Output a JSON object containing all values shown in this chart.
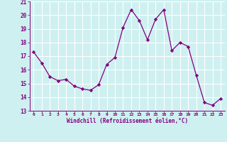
{
  "x": [
    0,
    1,
    2,
    3,
    4,
    5,
    6,
    7,
    8,
    9,
    10,
    11,
    12,
    13,
    14,
    15,
    16,
    17,
    18,
    19,
    20,
    21,
    22,
    23
  ],
  "y": [
    17.3,
    16.5,
    15.5,
    15.2,
    15.3,
    14.8,
    14.6,
    14.5,
    14.9,
    16.4,
    16.9,
    19.1,
    20.4,
    19.6,
    18.2,
    19.7,
    20.4,
    17.4,
    18.0,
    17.7,
    15.6,
    13.6,
    13.4,
    13.9
  ],
  "line_color": "#800080",
  "marker": "D",
  "marker_size": 2.2,
  "bg_color": "#cff0f0",
  "grid_color": "#ffffff",
  "xlabel": "Windchill (Refroidissement éolien,°C)",
  "xlabel_color": "#800080",
  "tick_color": "#800080",
  "ylim": [
    13,
    21
  ],
  "xlim": [
    -0.5,
    23.5
  ],
  "yticks": [
    13,
    14,
    15,
    16,
    17,
    18,
    19,
    20,
    21
  ],
  "xticks": [
    0,
    1,
    2,
    3,
    4,
    5,
    6,
    7,
    8,
    9,
    10,
    11,
    12,
    13,
    14,
    15,
    16,
    17,
    18,
    19,
    20,
    21,
    22,
    23
  ],
  "xtick_labels": [
    "0",
    "1",
    "2",
    "3",
    "4",
    "5",
    "6",
    "7",
    "8",
    "9",
    "10",
    "11",
    "12",
    "13",
    "14",
    "15",
    "16",
    "17",
    "18",
    "19",
    "20",
    "21",
    "22",
    "23"
  ]
}
